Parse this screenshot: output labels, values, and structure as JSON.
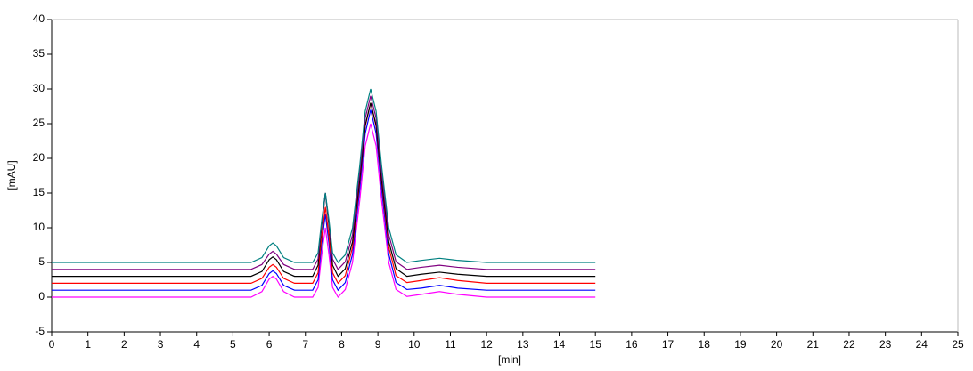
{
  "chart_data": {
    "type": "line",
    "x_label": "[min]",
    "y_label": "[mAU]",
    "xlim": [
      0,
      25
    ],
    "xticks": [
      0,
      1,
      2,
      3,
      4,
      5,
      6,
      7,
      8,
      9,
      10,
      11,
      12,
      13,
      14,
      15,
      16,
      17,
      18,
      19,
      20,
      21,
      22,
      23,
      24,
      25
    ],
    "ylim": [
      -5,
      40
    ],
    "yticks": [
      -5,
      0,
      5,
      10,
      15,
      20,
      25,
      30,
      35,
      40
    ],
    "x": [
      0,
      1,
      2,
      3,
      4,
      5,
      5.5,
      5.8,
      6.0,
      6.1,
      6.2,
      6.4,
      6.7,
      7.0,
      7.2,
      7.35,
      7.45,
      7.55,
      7.65,
      7.75,
      7.9,
      8.1,
      8.3,
      8.5,
      8.65,
      8.8,
      8.95,
      9.1,
      9.3,
      9.5,
      9.8,
      10.2,
      10.7,
      11.2,
      12,
      13,
      14,
      15
    ],
    "series": [
      {
        "color": "#ff00ff",
        "values": [
          0,
          0,
          0,
          0,
          0,
          0,
          0,
          0.8,
          2.6,
          3,
          2.6,
          0.8,
          0,
          0,
          0,
          1.4,
          6.1,
          10,
          6.1,
          1.4,
          0,
          1.1,
          5,
          14,
          21.8,
          25,
          21.8,
          14,
          5,
          1.1,
          0.1,
          0.4,
          0.8,
          0.4,
          0,
          0,
          0,
          0
        ]
      },
      {
        "color": "#0000ff",
        "values": [
          1,
          1,
          1,
          1,
          1,
          1,
          1,
          1.7,
          3.4,
          3.8,
          3.4,
          1.7,
          1,
          1,
          1,
          2.5,
          7.7,
          12,
          7.7,
          2.5,
          1,
          2.1,
          6.2,
          15.6,
          23.6,
          27,
          23.6,
          15.6,
          6.2,
          2.1,
          1.1,
          1.3,
          1.7,
          1.3,
          1,
          1,
          1,
          1
        ]
      },
      {
        "color": "#ff0000",
        "values": [
          2,
          2,
          2,
          2,
          2,
          2,
          2,
          2.7,
          4.3,
          4.7,
          4.3,
          2.7,
          2,
          2,
          2,
          3.5,
          8.7,
          13,
          8.7,
          3.5,
          2,
          3.1,
          7.2,
          16.6,
          24.6,
          28,
          24.6,
          16.6,
          7.2,
          3.1,
          2.1,
          2.4,
          2.8,
          2.4,
          2,
          2,
          2,
          2
        ]
      },
      {
        "color": "#000000",
        "values": [
          3,
          3,
          3,
          3,
          3,
          3,
          3,
          3.7,
          5.4,
          5.8,
          5.4,
          3.7,
          3,
          3,
          3,
          4.6,
          10.3,
          15,
          10.3,
          4.6,
          3,
          4.1,
          8,
          17,
          24.8,
          28,
          24.8,
          17,
          8,
          4.1,
          3,
          3.3,
          3.6,
          3.3,
          3,
          3,
          3,
          3
        ]
      },
      {
        "color": "#800080",
        "values": [
          4,
          4,
          4,
          4,
          4,
          4,
          4,
          4.7,
          6.2,
          6.6,
          6.2,
          4.7,
          4,
          4,
          4,
          5.5,
          10.7,
          15,
          10.7,
          5.5,
          4,
          5.1,
          9,
          18,
          25.8,
          29,
          25.8,
          18,
          9,
          5.1,
          4,
          4.3,
          4.6,
          4.3,
          4,
          4,
          4,
          4
        ]
      },
      {
        "color": "#008080",
        "values": [
          5,
          5,
          5,
          5,
          5,
          5,
          5,
          5.7,
          7.4,
          7.8,
          7.4,
          5.7,
          5,
          5,
          5,
          6.4,
          11.1,
          15,
          11.1,
          6.4,
          5,
          6.1,
          10,
          19,
          26.8,
          30,
          26.8,
          19,
          10,
          6.1,
          5,
          5.3,
          5.6,
          5.3,
          5,
          5,
          5,
          5
        ]
      }
    ]
  }
}
